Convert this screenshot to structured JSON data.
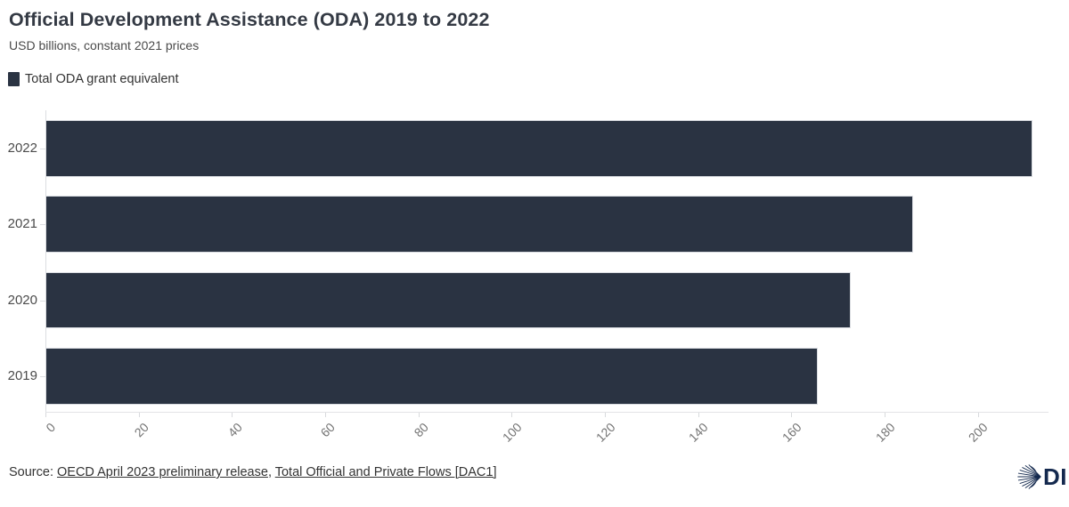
{
  "header": {
    "title": "Official Development Assistance (ODA) 2019 to 2022",
    "subtitle": "USD billions, constant 2021 prices"
  },
  "chart_data": {
    "type": "bar",
    "orientation": "horizontal",
    "title": "Official Development Assistance (ODA) 2019 to 2022",
    "subtitle": "USD billions, constant 2021 prices",
    "categories": [
      "2022",
      "2021",
      "2020",
      "2019"
    ],
    "series": [
      {
        "name": "Total ODA grant equivalent",
        "values": [
          211.5,
          186,
          172.5,
          165.5
        ]
      }
    ],
    "xlabel": "",
    "ylabel": "",
    "xlim": [
      0,
      215
    ],
    "x_ticks": [
      0,
      20,
      40,
      60,
      80,
      100,
      120,
      140,
      160,
      180,
      200
    ],
    "grid": false,
    "legend_position": "top-left",
    "bar_color": "#2a3342"
  },
  "footer": {
    "prefix": "Source: ",
    "links": [
      {
        "text": "OECD April 2023 preliminary release"
      },
      {
        "text": "Total Official and Private Flows [DAC1]"
      }
    ],
    "separator": ", "
  },
  "logo": {
    "text": "DI",
    "color": "#14294e",
    "icon": "globe-icon"
  }
}
